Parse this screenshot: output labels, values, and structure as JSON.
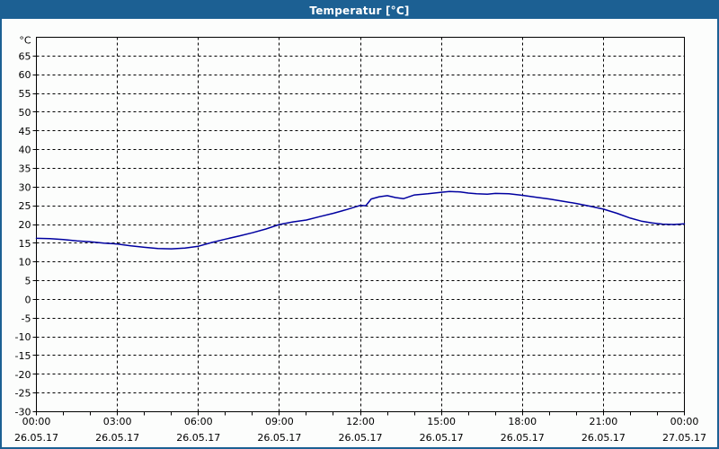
{
  "window": {
    "title": "Temperatur [°C]"
  },
  "colors": {
    "titlebar": "#1c6093",
    "window_border": "#1c6093",
    "background": "#fcfdfc",
    "title_text": "#ffffff",
    "grid": "#000000",
    "axis": "#000000",
    "label_text": "#000000",
    "line": "#0000a0"
  },
  "chart_data": {
    "type": "line",
    "title": "Temperatur [°C]",
    "ylabel": "°C",
    "ylim": [
      -30,
      70
    ],
    "ytick_step": 5,
    "ytick_labels": [
      "-30",
      "-25",
      "-20",
      "-15",
      "-10",
      "-5",
      "0",
      "5",
      "10",
      "15",
      "20",
      "25",
      "30",
      "35",
      "40",
      "45",
      "50",
      "55",
      "60",
      "65"
    ],
    "xlim_hours": [
      0,
      24
    ],
    "x_major_step_hours": 3,
    "x_minor_step_hours": 1,
    "grid": "dashed",
    "legend": "none",
    "xticks": [
      {
        "hour": 0,
        "time": "00:00",
        "date": "26.05.17"
      },
      {
        "hour": 3,
        "time": "03:00",
        "date": "26.05.17"
      },
      {
        "hour": 6,
        "time": "06:00",
        "date": "26.05.17"
      },
      {
        "hour": 9,
        "time": "09:00",
        "date": "26.05.17"
      },
      {
        "hour": 12,
        "time": "12:00",
        "date": "26.05.17"
      },
      {
        "hour": 15,
        "time": "15:00",
        "date": "26.05.17"
      },
      {
        "hour": 18,
        "time": "18:00",
        "date": "26.05.17"
      },
      {
        "hour": 21,
        "time": "21:00",
        "date": "26.05.17"
      },
      {
        "hour": 24,
        "time": "00:00",
        "date": "27.05.17"
      }
    ],
    "series": [
      {
        "name": "Temperatur",
        "color": "#0000a0",
        "points": [
          [
            0,
            16.3
          ],
          [
            0.5,
            16.2
          ],
          [
            1,
            16.0
          ],
          [
            1.5,
            15.6
          ],
          [
            2,
            15.4
          ],
          [
            2.5,
            15.0
          ],
          [
            3,
            14.8
          ],
          [
            3.5,
            14.3
          ],
          [
            4,
            13.9
          ],
          [
            4.5,
            13.6
          ],
          [
            5,
            13.5
          ],
          [
            5.5,
            13.7
          ],
          [
            6,
            14.2
          ],
          [
            6.5,
            15.2
          ],
          [
            7,
            16.1
          ],
          [
            7.5,
            16.9
          ],
          [
            8,
            17.8
          ],
          [
            8.5,
            18.8
          ],
          [
            9,
            20.0
          ],
          [
            9.5,
            20.7
          ],
          [
            10,
            21.2
          ],
          [
            10.5,
            22.1
          ],
          [
            11,
            23.0
          ],
          [
            11.5,
            24.0
          ],
          [
            12,
            25.1
          ],
          [
            12.2,
            25.0
          ],
          [
            12.4,
            26.8
          ],
          [
            12.7,
            27.4
          ],
          [
            13,
            27.7
          ],
          [
            13.3,
            27.2
          ],
          [
            13.6,
            26.9
          ],
          [
            14,
            27.9
          ],
          [
            14.5,
            28.2
          ],
          [
            15,
            28.6
          ],
          [
            15.3,
            28.8
          ],
          [
            15.7,
            28.7
          ],
          [
            16,
            28.4
          ],
          [
            16.3,
            28.2
          ],
          [
            16.7,
            28.1
          ],
          [
            17,
            28.3
          ],
          [
            17.5,
            28.2
          ],
          [
            18,
            27.8
          ],
          [
            18.5,
            27.3
          ],
          [
            19,
            26.8
          ],
          [
            19.5,
            26.2
          ],
          [
            20,
            25.6
          ],
          [
            20.5,
            24.9
          ],
          [
            21,
            24.1
          ],
          [
            21.5,
            23.0
          ],
          [
            22,
            21.7
          ],
          [
            22.4,
            20.9
          ],
          [
            22.8,
            20.4
          ],
          [
            23.2,
            20.1
          ],
          [
            23.6,
            20.0
          ],
          [
            24,
            20.2
          ]
        ]
      }
    ]
  }
}
